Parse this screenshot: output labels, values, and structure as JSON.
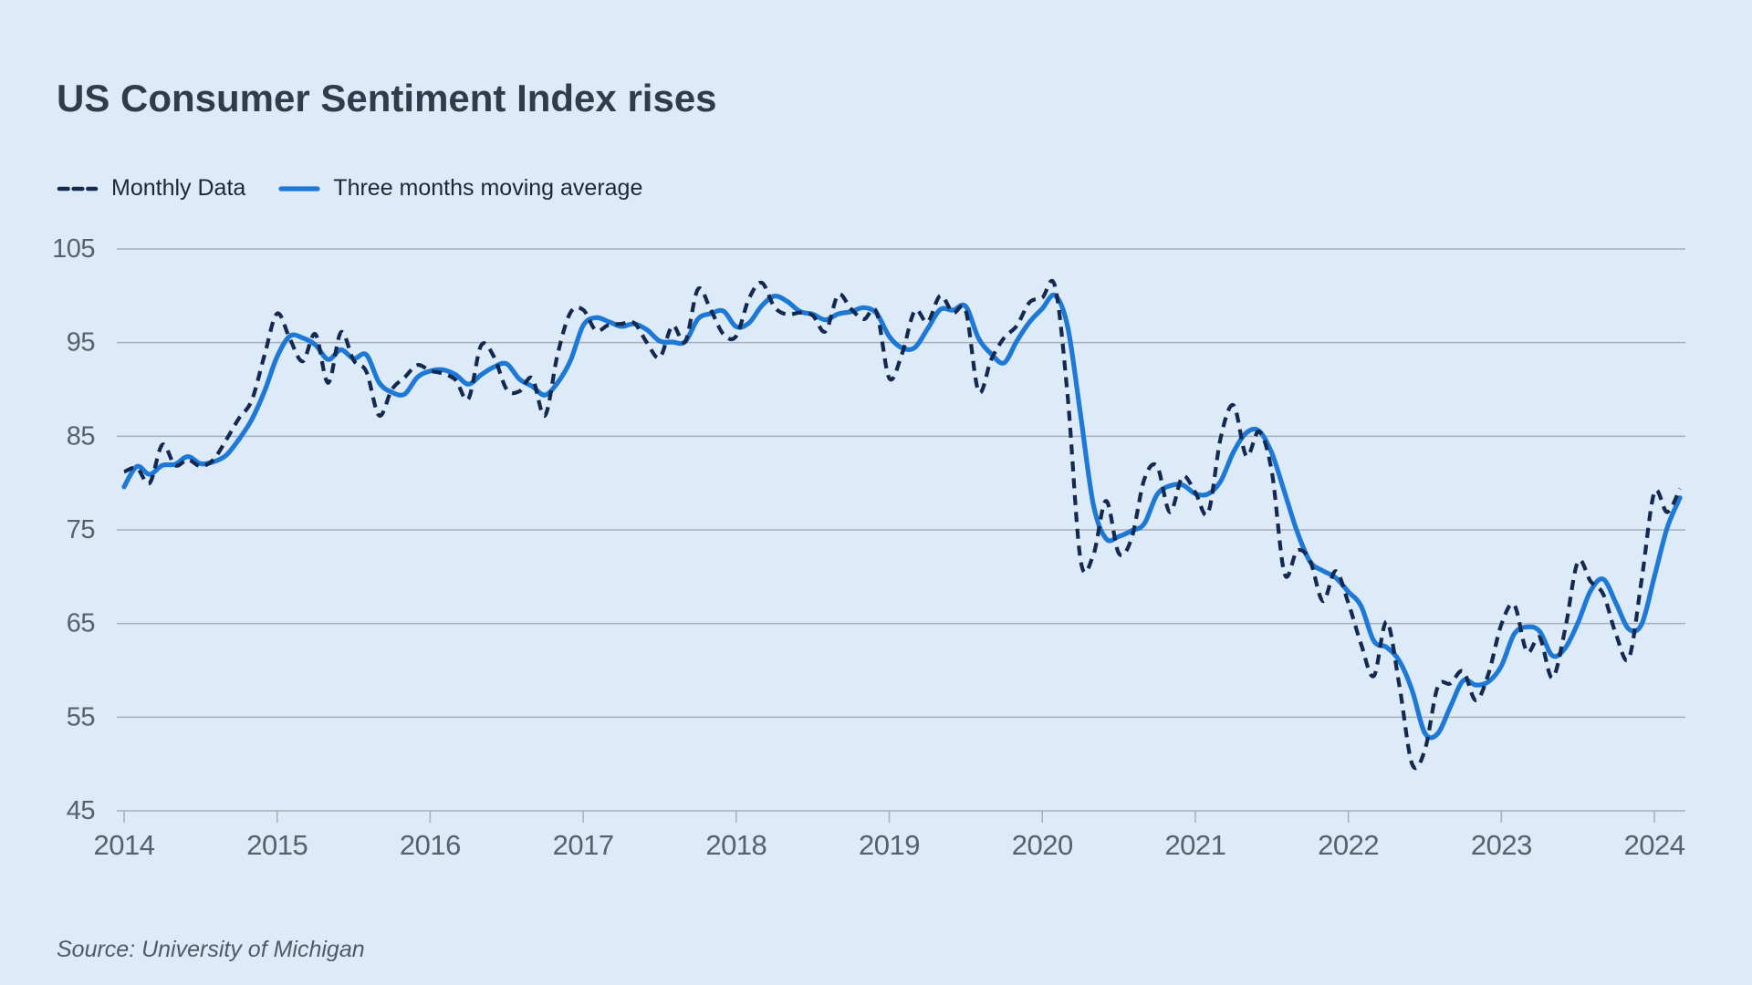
{
  "page": {
    "title": "US Consumer Sentiment Index rises",
    "source": "Source: University of Michigan"
  },
  "legend": [
    {
      "label": "Monthly Data",
      "color": "#13294f",
      "style": "dashed"
    },
    {
      "label": "Three months moving average",
      "color": "#1e79d6",
      "style": "solid"
    }
  ],
  "colors": {
    "background": "#ddeaf8",
    "gridline": "#a6b0b9",
    "axis_label": "#57616b",
    "title_text": "#2e3c4d",
    "legend_text": "#1d2836",
    "source_text": "#4e5a66"
  },
  "chart_data": {
    "type": "line",
    "title": "US Consumer Sentiment Index rises",
    "xlabel": "",
    "ylabel": "",
    "ylim": [
      45,
      105
    ],
    "y_ticks": [
      105,
      95,
      85,
      75,
      65,
      55,
      45
    ],
    "x_ticks": [
      2014,
      2015,
      2016,
      2017,
      2018,
      2019,
      2020,
      2021,
      2022,
      2023,
      2024
    ],
    "x_start_month": "2014-01",
    "x_end_month": "2024-03",
    "grid": true,
    "legend_position": "top-left",
    "source": "University of Michigan",
    "series": [
      {
        "name": "Monthly Data",
        "style": "dashed",
        "color": "#13294f",
        "values": [
          81.2,
          81.6,
          80.0,
          84.1,
          81.9,
          82.5,
          81.8,
          82.5,
          84.6,
          86.9,
          88.8,
          93.6,
          98.1,
          95.4,
          93.0,
          95.9,
          90.7,
          96.1,
          93.1,
          91.9,
          87.2,
          90.0,
          91.3,
          92.6,
          92.0,
          91.7,
          91.0,
          89.0,
          94.7,
          93.5,
          90.0,
          89.8,
          91.2,
          87.2,
          93.8,
          98.2,
          98.5,
          96.3,
          96.9,
          97.0,
          97.1,
          95.0,
          93.4,
          96.8,
          95.1,
          100.7,
          98.5,
          95.9,
          95.7,
          99.7,
          101.4,
          98.8,
          98.0,
          98.2,
          97.9,
          96.2,
          100.1,
          98.6,
          97.5,
          98.3,
          91.2,
          93.8,
          98.4,
          97.2,
          100.0,
          98.2,
          98.4,
          89.8,
          93.2,
          95.5,
          96.8,
          99.3,
          99.8,
          101.0,
          89.1,
          71.8,
          72.3,
          78.1,
          72.5,
          74.1,
          80.4,
          81.8,
          76.9,
          80.7,
          79.0,
          76.8,
          84.9,
          88.3,
          82.9,
          85.5,
          81.2,
          70.3,
          72.8,
          71.7,
          67.4,
          70.6,
          67.2,
          62.8,
          59.4,
          65.2,
          58.4,
          50.0,
          51.5,
          58.2,
          58.6,
          59.9,
          56.8,
          59.7,
          64.9,
          67.0,
          62.0,
          63.5,
          59.2,
          64.4,
          71.6,
          69.5,
          68.1,
          63.8,
          61.3,
          69.7,
          79.0,
          76.9,
          79.4
        ]
      },
      {
        "name": "Three months moving average",
        "style": "solid",
        "color": "#1e79d6",
        "derived": "trailing 3-month average of Monthly Data",
        "seed_prev_months": [
          75.1,
          82.5
        ]
      }
    ]
  }
}
